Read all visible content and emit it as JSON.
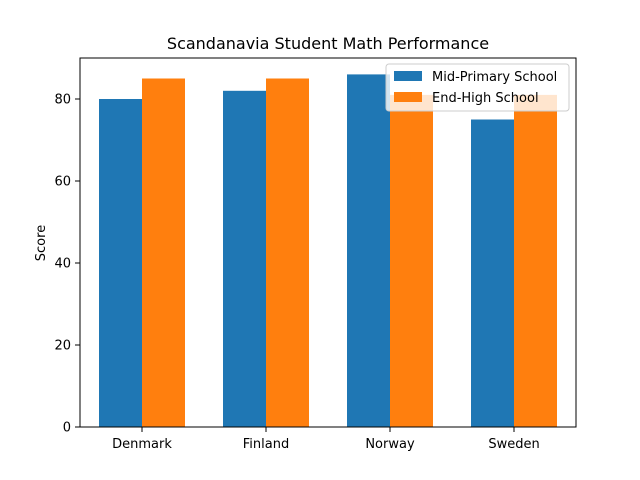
{
  "chart_data": {
    "type": "bar",
    "title": "Scandanavia Student Math Performance",
    "xlabel": "",
    "ylabel": "Score",
    "categories": [
      "Denmark",
      "Finland",
      "Norway",
      "Sweden"
    ],
    "series": [
      {
        "name": "Mid-Primary School",
        "values": [
          80,
          82,
          86,
          75
        ],
        "color": "#1f77b4"
      },
      {
        "name": "End-High School",
        "values": [
          85,
          85,
          81,
          81
        ],
        "color": "#ff7f0e"
      }
    ],
    "ylim": [
      0,
      90
    ],
    "yticks": [
      0,
      20,
      40,
      60,
      80
    ],
    "grid": false,
    "legend_position": "top-right"
  }
}
